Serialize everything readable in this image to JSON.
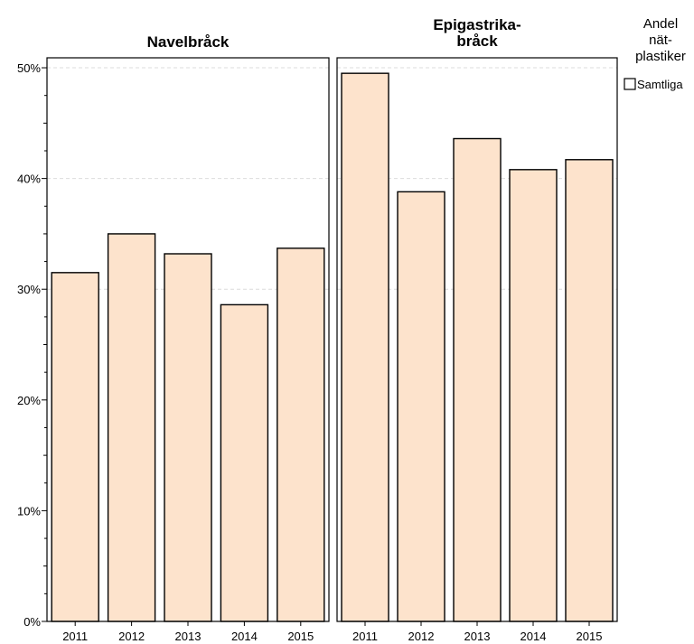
{
  "chart_data": {
    "type": "bar",
    "categories": [
      "2011",
      "2012",
      "2013",
      "2014",
      "2015"
    ],
    "panels": [
      {
        "title_lines": [
          "Navelbråck"
        ],
        "values": [
          31.5,
          35.0,
          33.2,
          28.6,
          33.7
        ]
      },
      {
        "title_lines": [
          "Epigastrika-",
          "bråck"
        ],
        "values": [
          49.5,
          38.8,
          43.6,
          40.8,
          41.7
        ]
      }
    ],
    "y_ticks": [
      0,
      10,
      20,
      30,
      40,
      50
    ],
    "y_tick_labels": [
      "0%",
      "10%",
      "20%",
      "30%",
      "40%",
      "50%"
    ],
    "ylim": [
      0,
      50.9
    ],
    "gridlines": [
      30,
      40,
      50
    ],
    "bar_color": "#fde3cc",
    "legend": {
      "title_lines": [
        "Andel",
        "nät-",
        "plastiker"
      ],
      "entries": [
        "Samtliga"
      ],
      "position": "top-right"
    }
  }
}
